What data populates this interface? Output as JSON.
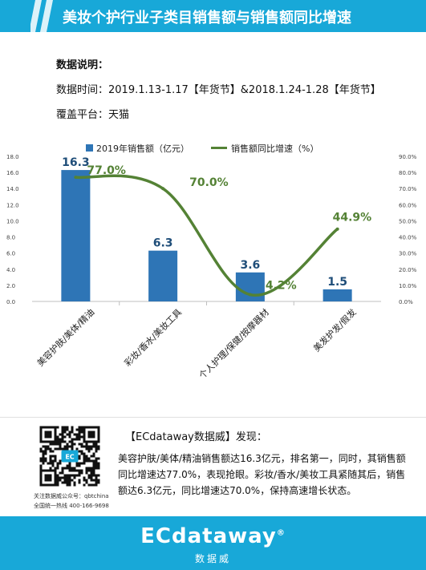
{
  "header": {
    "title": "美妆个护行业子类目销售额与销售额同比增速"
  },
  "description": {
    "heading": "数据说明：",
    "time": "数据时间：2019.1.13-1.17【年货节】&2018.1.24-1.28【年货节】",
    "platform": "覆盖平台：天猫"
  },
  "chart_data": {
    "type": "bar",
    "categories": [
      "美容护肤/美体/精油",
      "彩妆/香水/美妆工具",
      "个人护理/保健/按摩器材",
      "美发护发/假发"
    ],
    "series": [
      {
        "name": "2019年销售额（亿元）",
        "type": "bar",
        "values": [
          16.3,
          6.3,
          3.6,
          1.5
        ],
        "labels": [
          "16.3",
          "6.3",
          "3.6",
          "1.5"
        ]
      },
      {
        "name": "销售额同比增速（%）",
        "type": "line",
        "values": [
          77.0,
          70.0,
          4.2,
          44.9
        ],
        "labels": [
          "77.0%",
          "70.0%",
          "4.2%",
          "44.9%"
        ]
      }
    ],
    "ylim": [
      0,
      18
    ],
    "y2lim": [
      0,
      90
    ],
    "yticks": [
      "0.0",
      "2.0",
      "4.0",
      "6.0",
      "8.0",
      "10.0",
      "12.0",
      "14.0",
      "16.0",
      "18.0"
    ],
    "y2ticks": [
      "0.0%",
      "10.0%",
      "20.0%",
      "30.0%",
      "40.0%",
      "50.0%",
      "60.0%",
      "70.0%",
      "80.0%",
      "90.0%"
    ],
    "legend_position": "top",
    "grid": false,
    "colors": {
      "bar": "#2e75b6",
      "line": "#548235"
    }
  },
  "qr": {
    "badge": "EC",
    "caption1": "关注数据威公众号：qbtchina",
    "caption2": "全国统一热线 400-166-9698"
  },
  "findings": {
    "title": "【ECdataway数据威】发现：",
    "body": "美容护肤/美体/精油销售额达16.3亿元，排名第一，同时，其销售额同比增速达77.0%，表现抢眼。彩妆/香水/美妆工具紧随其后，销售额达6.3亿元，同比增速达70.0%，保持高速增长状态。"
  },
  "footer": {
    "logo": "ECdataway",
    "registered": "®",
    "sub": "数据威"
  },
  "colors": {
    "brand": "#18a8d8"
  }
}
